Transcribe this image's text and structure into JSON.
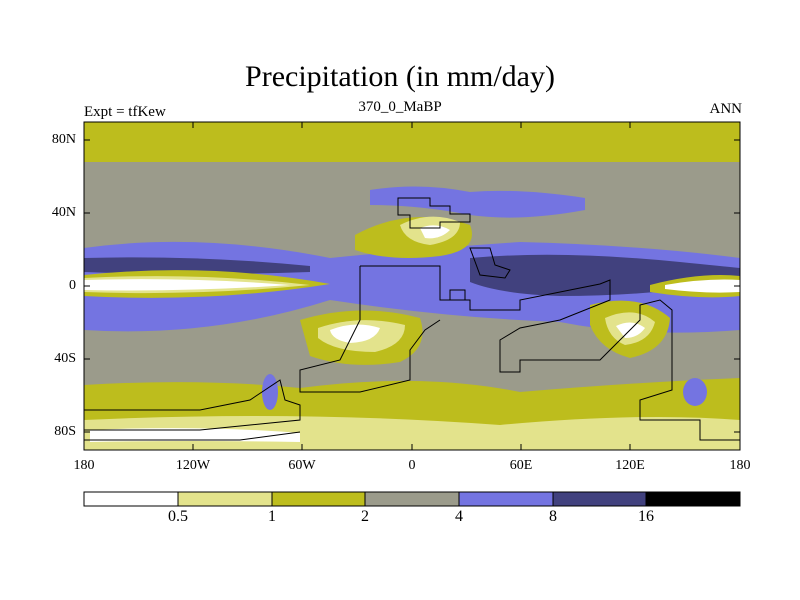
{
  "header": {
    "title": "Precipitation (in mm/day)",
    "subtitle": "370_0_MaBP",
    "left_label": "Expt = tfKew",
    "right_label": "ANN"
  },
  "axes": {
    "y_ticks": [
      "80N",
      "40N",
      "0",
      "40S",
      "80S"
    ],
    "x_ticks": [
      "180",
      "120W",
      "60W",
      "0",
      "60E",
      "120E",
      "180"
    ]
  },
  "colorbar": {
    "colors": [
      "#ffffff",
      "#e3e38c",
      "#bdbd1d",
      "#9b9b8b",
      "#7474e1",
      "#41417e",
      "#000000"
    ],
    "tick_labels": [
      "0.5",
      "1",
      "2",
      "4",
      "8",
      "16"
    ]
  },
  "map": {
    "type": "filled-contour",
    "variable": "Precipitation",
    "units": "mm/day",
    "lon_range": [
      -180,
      180
    ],
    "lat_range": [
      -90,
      90
    ]
  }
}
